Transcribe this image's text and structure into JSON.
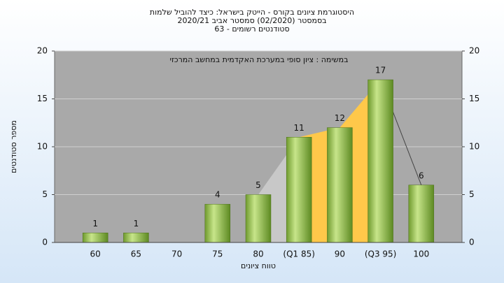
{
  "chart_data": {
    "type": "bar",
    "title": "היסטוגרמת ציונים בקורס - הייטק בישראל: כיצד להוביל שלמות",
    "subtitle": "בסמסטר  (02/2020)  סמסטר אביב 2020/21",
    "subtitle2": "סטודנטים רשומים - 63",
    "annotation": "במשימה : ציון סופי במערכת האקדמית במחשב המרכזי",
    "xlabel": "טווח ציונים",
    "ylabel": "מספר סטודנטים",
    "categories": [
      "60",
      "65",
      "70",
      "75",
      "80",
      "(Q1 85)",
      "90",
      "(Q3 95)",
      "100"
    ],
    "values": [
      1,
      1,
      null,
      4,
      5,
      11,
      12,
      17,
      6
    ],
    "color": "#8fc04a",
    "highlight_color": "#ffc84a",
    "ylim": [
      0,
      20
    ],
    "yticks": [
      0,
      5,
      10,
      15,
      20
    ],
    "y2lim": [
      0,
      20
    ],
    "y2ticks": [
      0,
      5,
      10,
      15,
      20
    ],
    "grid": true
  }
}
